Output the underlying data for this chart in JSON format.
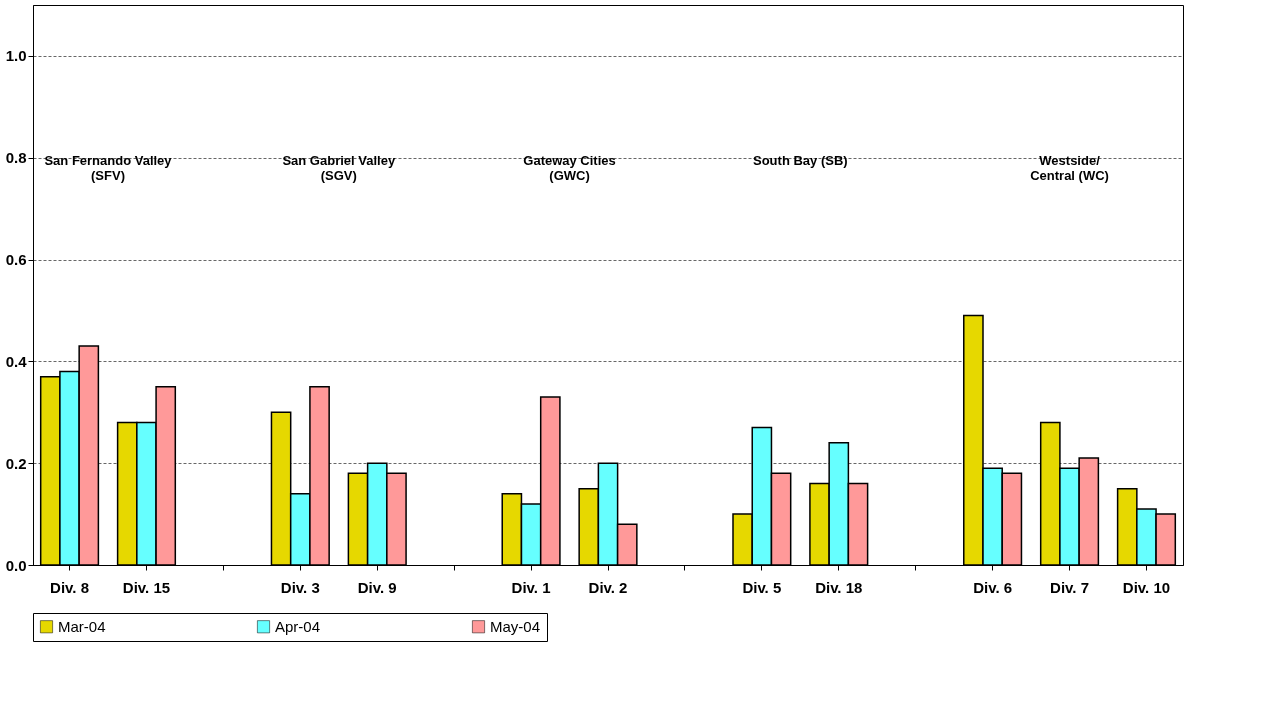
{
  "chart_data": {
    "type": "bar",
    "categories": [
      "Div. 8",
      "Div. 15",
      null,
      "Div. 3",
      "Div. 9",
      null,
      "Div. 1",
      "Div. 2",
      null,
      "Div. 5",
      "Div. 18",
      null,
      "Div. 6",
      "Div. 7",
      "Div. 10"
    ],
    "series": [
      {
        "name": "Mar-04",
        "color": "#e6d800",
        "values": [
          0.37,
          0.28,
          null,
          0.3,
          0.18,
          null,
          0.14,
          0.15,
          null,
          0.1,
          0.16,
          null,
          0.49,
          0.28,
          0.15
        ]
      },
      {
        "name": "Apr-04",
        "color": "#66ffff",
        "values": [
          0.38,
          0.28,
          null,
          0.14,
          0.2,
          null,
          0.12,
          0.2,
          null,
          0.27,
          0.24,
          null,
          0.19,
          0.19,
          0.11
        ]
      },
      {
        "name": "May-04",
        "color": "#ff9999",
        "values": [
          0.43,
          0.35,
          null,
          0.35,
          0.18,
          null,
          0.33,
          0.08,
          null,
          0.18,
          0.16,
          null,
          0.18,
          0.21,
          0.1
        ]
      }
    ],
    "ylim": [
      0,
      1.1
    ],
    "yticks": [
      {
        "value": 0,
        "label": "0.0"
      },
      0.2,
      0.4,
      0.6,
      0.8,
      {
        "value": 1,
        "label": "1.0"
      }
    ],
    "annotations": [
      "San Fernando Valley\n(SFV)",
      "San Gabriel Valley\n(SGV)",
      "Gateway Cities\n(GWC)",
      "South Bay (SB)",
      "Westside/\nCentral (WC)"
    ],
    "grid": "y",
    "legend": "bottom"
  }
}
